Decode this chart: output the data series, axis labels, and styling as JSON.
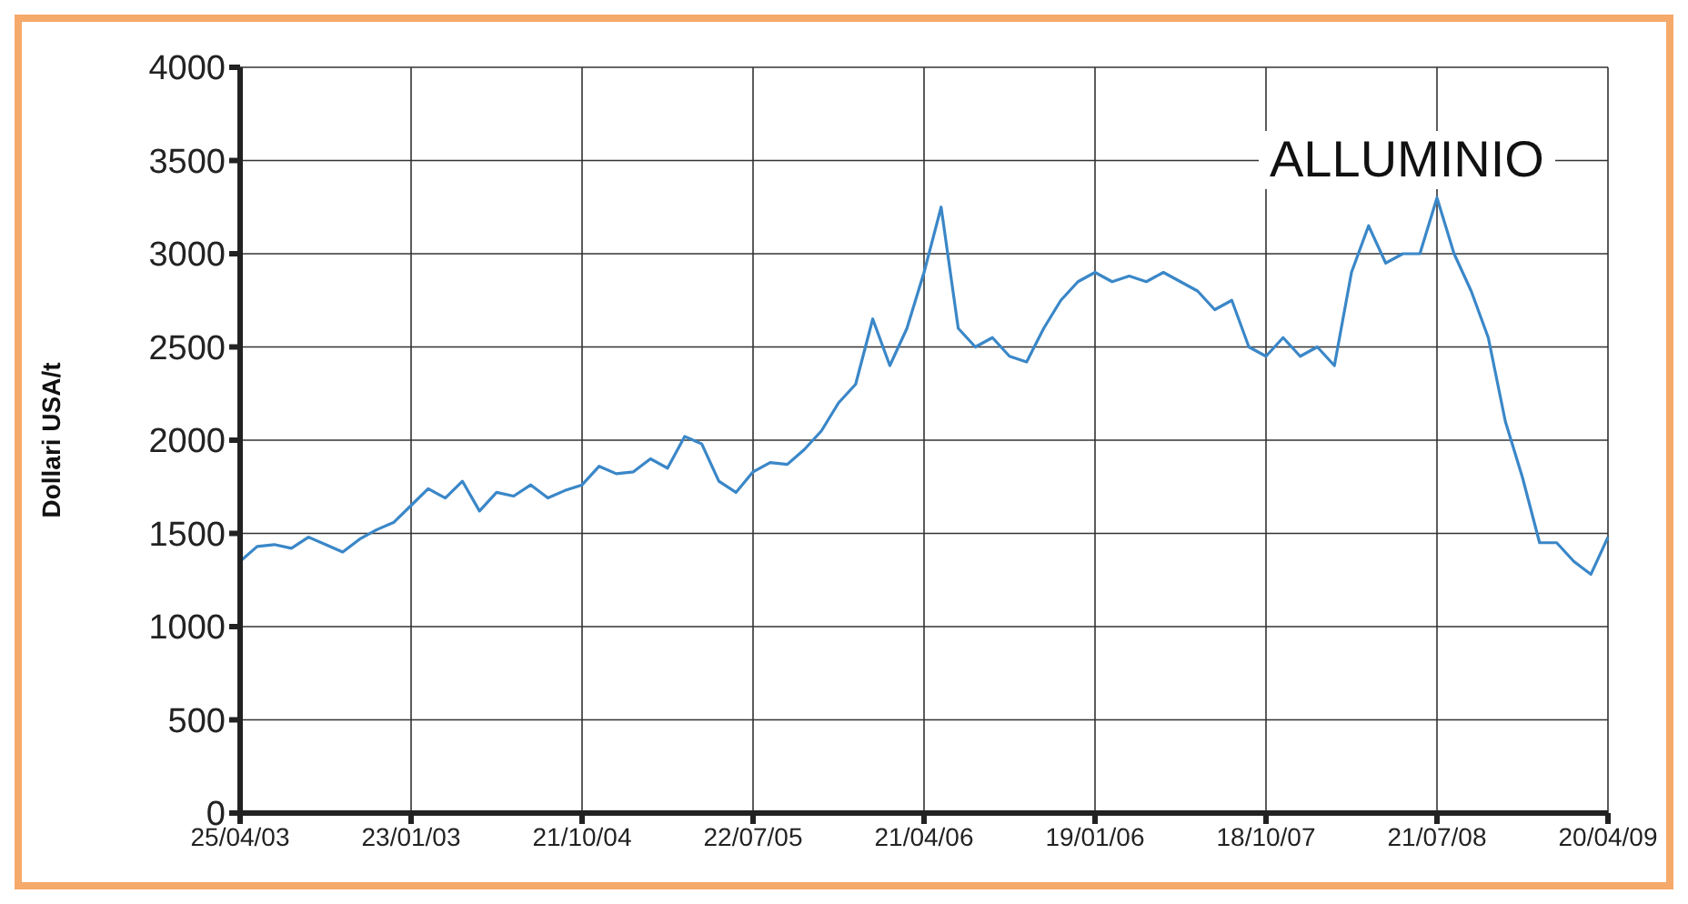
{
  "chart_data": {
    "type": "line",
    "title": "ALLUMINIO",
    "ylabel": "Dollari USA/t",
    "categories": [
      "25/04/03",
      null,
      null,
      null,
      null,
      null,
      null,
      null,
      null,
      null,
      "23/01/03",
      null,
      null,
      null,
      null,
      null,
      null,
      null,
      null,
      null,
      "21/10/04",
      null,
      null,
      null,
      null,
      null,
      null,
      null,
      null,
      null,
      "22/07/05",
      null,
      null,
      null,
      null,
      null,
      null,
      null,
      null,
      null,
      "21/04/06",
      null,
      null,
      null,
      null,
      null,
      null,
      null,
      null,
      null,
      "19/01/06",
      null,
      null,
      null,
      null,
      null,
      null,
      null,
      null,
      null,
      "18/10/07",
      null,
      null,
      null,
      null,
      null,
      null,
      null,
      null,
      null,
      "21/07/08",
      null,
      null,
      null,
      null,
      null,
      null,
      null,
      null,
      null,
      "20/04/09"
    ],
    "series": [
      {
        "color": "#3a87c8",
        "values": [
          1350,
          1430,
          1440,
          1420,
          1480,
          1440,
          1400,
          1470,
          1520,
          1560,
          1650,
          1740,
          1690,
          1780,
          1620,
          1720,
          1700,
          1760,
          1690,
          1730,
          1760,
          1860,
          1820,
          1830,
          1900,
          1850,
          2020,
          1980,
          1780,
          1720,
          1830,
          1880,
          1870,
          1950,
          2050,
          2200,
          2300,
          2650,
          2400,
          2600,
          2900,
          3250,
          2600,
          2500,
          2550,
          2450,
          2420,
          2600,
          2750,
          2850,
          2900,
          2850,
          2880,
          2850,
          2900,
          2850,
          2800,
          2700,
          2750,
          2500,
          2450,
          2550,
          2450,
          2500,
          2400,
          2900,
          3150,
          2950,
          3000,
          3000,
          3300,
          3000,
          2800,
          2550,
          2100,
          1800,
          1450,
          1450,
          1350,
          1280,
          1480
        ]
      }
    ],
    "ylim": [
      0,
      4000
    ],
    "yticks": [
      0,
      500,
      1000,
      1500,
      2000,
      2500,
      3000,
      3500,
      4000
    ],
    "grid": true,
    "legend": false,
    "marker": "none",
    "line_style": "solid"
  }
}
